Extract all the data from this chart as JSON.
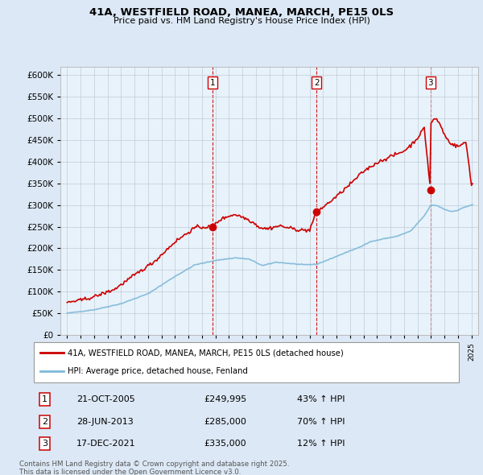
{
  "title": "41A, WESTFIELD ROAD, MANEA, MARCH, PE15 0LS",
  "subtitle": "Price paid vs. HM Land Registry's House Price Index (HPI)",
  "legend_line1": "41A, WESTFIELD ROAD, MANEA, MARCH, PE15 0LS (detached house)",
  "legend_line2": "HPI: Average price, detached house, Fenland",
  "footnote1": "Contains HM Land Registry data © Crown copyright and database right 2025.",
  "footnote2": "This data is licensed under the Open Government Licence v3.0.",
  "sales": [
    {
      "num": 1,
      "date": "21-OCT-2005",
      "price": 249995,
      "x": 2005.8,
      "pct": "43% ↑ HPI"
    },
    {
      "num": 2,
      "date": "28-JUN-2013",
      "price": 285000,
      "x": 2013.5,
      "pct": "70% ↑ HPI"
    },
    {
      "num": 3,
      "date": "17-DEC-2021",
      "price": 335000,
      "x": 2021.96,
      "pct": "12% ↑ HPI"
    }
  ],
  "hpi_color": "#7db8d8",
  "price_color": "#cc0000",
  "vline_color": "#cc0000",
  "ylim": [
    0,
    620000
  ],
  "yticks": [
    0,
    50000,
    100000,
    150000,
    200000,
    250000,
    300000,
    350000,
    400000,
    450000,
    500000,
    550000,
    600000
  ],
  "xlim": [
    1994.5,
    2025.5
  ],
  "bg_color": "#dce8f5",
  "plot_bg": "#dce8f5",
  "plot_inner_bg": "#e8f2fa"
}
